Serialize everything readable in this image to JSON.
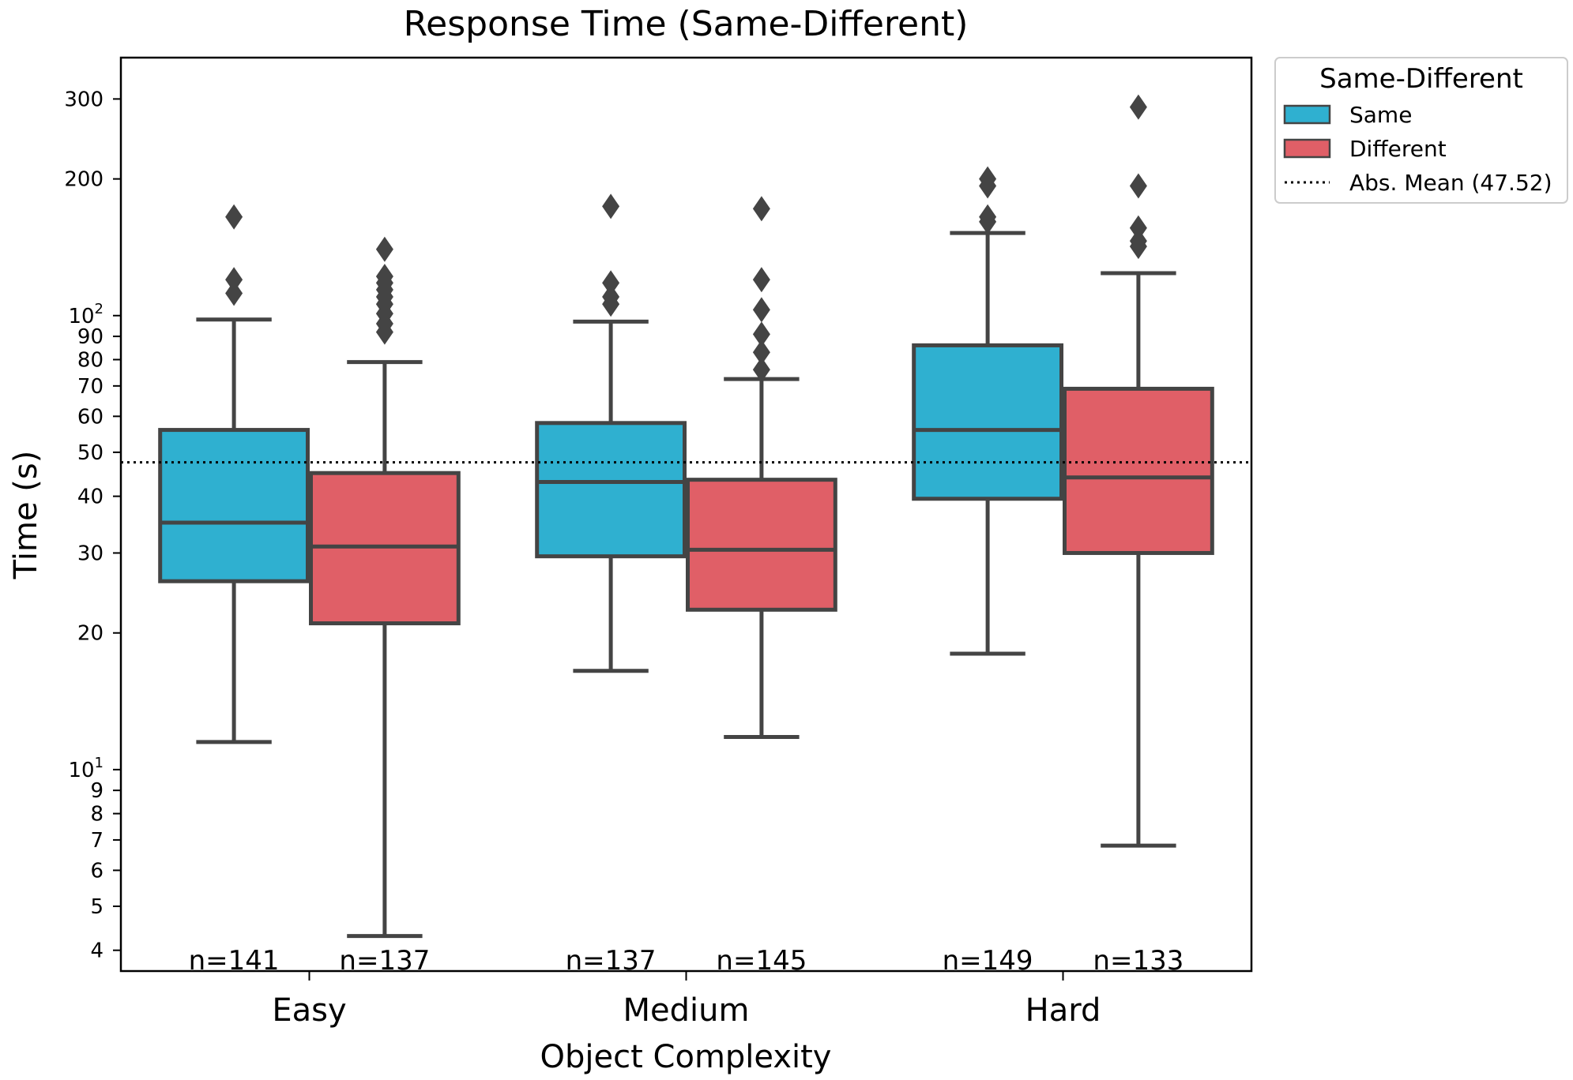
{
  "chart_data": {
    "type": "box",
    "title": "Response Time (Same-Different)",
    "xlabel": "Object Complexity",
    "ylabel": "Time (s)",
    "yscale": "log",
    "ylim": [
      3.6,
      370
    ],
    "categories": [
      "Easy",
      "Medium",
      "Hard"
    ],
    "y_ticks": [
      {
        "value": 4,
        "label": "4"
      },
      {
        "value": 5,
        "label": "5"
      },
      {
        "value": 6,
        "label": "6"
      },
      {
        "value": 7,
        "label": "7"
      },
      {
        "value": 8,
        "label": "8"
      },
      {
        "value": 9,
        "label": "9"
      },
      {
        "value": 10,
        "label": "10",
        "sup": "1"
      },
      {
        "value": 20,
        "label": "20"
      },
      {
        "value": 30,
        "label": "30"
      },
      {
        "value": 40,
        "label": "40"
      },
      {
        "value": 50,
        "label": "50"
      },
      {
        "value": 60,
        "label": "60"
      },
      {
        "value": 70,
        "label": "70"
      },
      {
        "value": 80,
        "label": "80"
      },
      {
        "value": 90,
        "label": "90"
      },
      {
        "value": 100,
        "label": "10",
        "sup": "2"
      },
      {
        "value": 200,
        "label": "200"
      },
      {
        "value": 300,
        "label": "300"
      }
    ],
    "series": [
      {
        "name": "Same",
        "color": "#2fb0d0",
        "boxes": [
          {
            "category": "Easy",
            "n_label": "n=141",
            "whisker_low": 11.5,
            "q1": 26,
            "median": 35,
            "q3": 56,
            "whisker_high": 98,
            "outliers": [
              112,
              120,
              165
            ]
          },
          {
            "category": "Medium",
            "n_label": "n=137",
            "whisker_low": 16.5,
            "q1": 29.5,
            "median": 43,
            "q3": 58,
            "whisker_high": 97,
            "outliers": [
              106,
              110,
              118,
              174
            ]
          },
          {
            "category": "Hard",
            "n_label": "n=149",
            "whisker_low": 18,
            "q1": 39.5,
            "median": 56,
            "q3": 86,
            "whisker_high": 152,
            "outliers": [
              161,
              165,
              193,
              200
            ]
          }
        ]
      },
      {
        "name": "Different",
        "color": "#e05f67",
        "boxes": [
          {
            "category": "Easy",
            "n_label": "n=137",
            "whisker_low": 4.3,
            "q1": 21,
            "median": 31,
            "q3": 45,
            "whisker_high": 79,
            "outliers": [
              92,
              96,
              101,
              106,
              110,
              114,
              118,
              122,
              140
            ]
          },
          {
            "category": "Medium",
            "n_label": "n=145",
            "whisker_low": 11.8,
            "q1": 22.5,
            "median": 30.5,
            "q3": 43.5,
            "whisker_high": 72.5,
            "outliers": [
              76,
              83,
              91,
              103,
              120,
              172
            ]
          },
          {
            "category": "Hard",
            "n_label": "n=133",
            "whisker_low": 6.8,
            "q1": 30,
            "median": 44,
            "q3": 69,
            "whisker_high": 124,
            "outliers": [
              142,
              146,
              156,
              193,
              288
            ]
          }
        ]
      }
    ],
    "reference_line": {
      "value": 47.52,
      "label": "Abs. Mean (47.52)",
      "style": "dotted"
    },
    "legend": {
      "title": "Same-Different",
      "position": "outside-right",
      "entries": [
        "Same",
        "Different",
        "Abs. Mean (47.52)"
      ]
    },
    "grid": false
  }
}
